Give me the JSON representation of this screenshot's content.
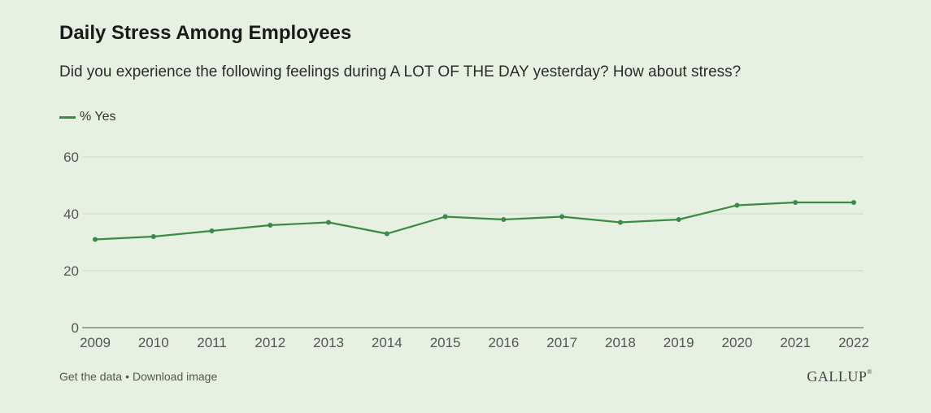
{
  "title": "Daily Stress Among Employees",
  "subtitle": "Did you experience the following feelings during A LOT OF THE DAY yesterday? How about stress?",
  "footer": {
    "get_data_label": "Get the data",
    "separator": "•",
    "download_label": "Download image"
  },
  "logo": "GALLUP",
  "colors": {
    "background": "#e6f1e1",
    "series": "#3a8a48",
    "grid": "#cfdcc9",
    "axis_text": "#555555"
  },
  "chart_data": {
    "type": "line",
    "title": "Daily Stress Among Employees",
    "subtitle": "Did you experience the following feelings during A LOT OF THE DAY yesterday? How about stress?",
    "xlabel": "",
    "ylabel": "",
    "x": [
      "2009",
      "2010",
      "2011",
      "2012",
      "2013",
      "2014",
      "2015",
      "2016",
      "2017",
      "2018",
      "2019",
      "2020",
      "2021",
      "2022"
    ],
    "series": [
      {
        "name": "% Yes",
        "values": [
          31,
          32,
          34,
          36,
          37,
          33,
          39,
          38,
          39,
          37,
          38,
          43,
          44,
          44
        ]
      }
    ],
    "ylim": [
      0,
      60
    ],
    "yticks": [
      0,
      20,
      40,
      60
    ],
    "grid": true,
    "legend_position": "top-left"
  }
}
